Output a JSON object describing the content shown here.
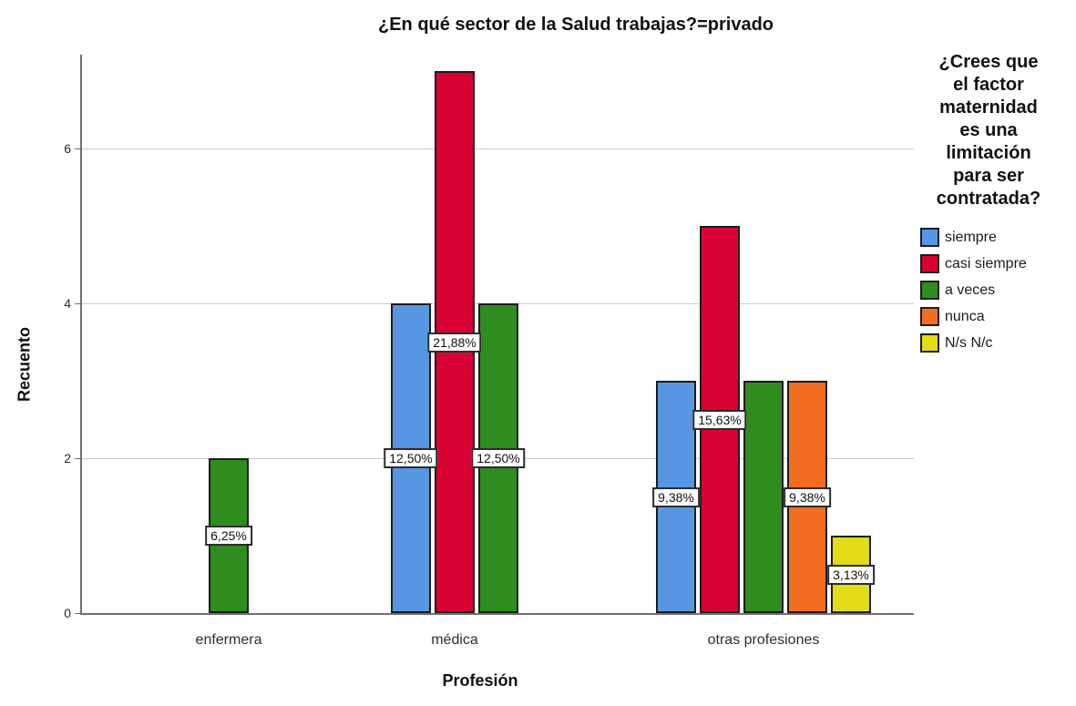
{
  "chart_data": {
    "type": "bar",
    "title": "¿En qué sector de la Salud trabajas?=privado",
    "xlabel": "Profesión",
    "ylabel": "Recuento",
    "categories": [
      "enfermera",
      "médica",
      "otras profesiones"
    ],
    "series": [
      {
        "name": "siempre",
        "color": "#5796E2",
        "values": [
          0,
          4,
          3
        ],
        "value_labels": [
          "",
          "12,50%",
          "9,38%"
        ]
      },
      {
        "name": "casi siempre",
        "color": "#D80235",
        "values": [
          0,
          7,
          5
        ],
        "value_labels": [
          "",
          "21,88%",
          "15,63%"
        ]
      },
      {
        "name": "a veces",
        "color": "#2F8C1E",
        "values": [
          2,
          4,
          3
        ],
        "value_labels": [
          "6,25%",
          "12,50%",
          ""
        ]
      },
      {
        "name": "nunca",
        "color": "#F26E21",
        "values": [
          0,
          0,
          3
        ],
        "value_labels": [
          "",
          "",
          "9,38%"
        ]
      },
      {
        "name": "N/s N/c",
        "color": "#E1DC17",
        "values": [
          0,
          0,
          1
        ],
        "value_labels": [
          "",
          "",
          "3,13%"
        ]
      }
    ],
    "ylim": [
      0,
      7.2
    ],
    "yticks": [
      0,
      2,
      4,
      6
    ],
    "grid": true,
    "legend": {
      "position": "right",
      "title": "¿Crees que el factor maternidad es una limitación para ser contratada?",
      "title_lines": [
        "¿Crees que",
        "el factor",
        "maternidad",
        "es una",
        "limitación",
        "para ser",
        "contratada?"
      ]
    },
    "axis_colors": {
      "axis": "#6f6f6f",
      "grid": "#cacaca",
      "text": "#2b2b2b"
    }
  }
}
